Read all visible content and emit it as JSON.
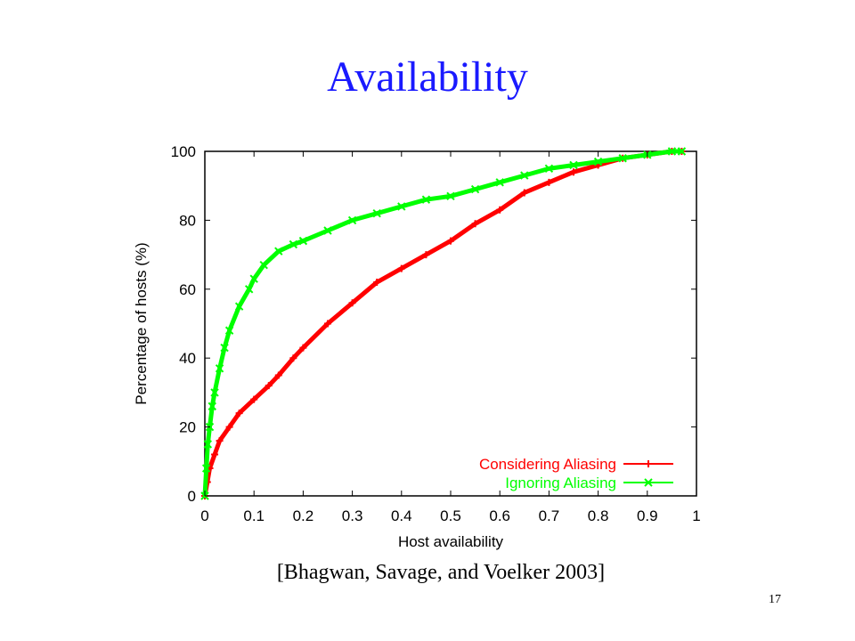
{
  "slide": {
    "title": "Availability",
    "citation": "[Bhagwan, Savage, and Voelker 2003]",
    "number": "17",
    "title_color": "#1a1aff"
  },
  "chart_data": {
    "type": "line",
    "xlabel": "Host availability",
    "ylabel": "Percentage of hosts (%)",
    "xlim": [
      0,
      1
    ],
    "ylim": [
      0,
      100
    ],
    "x_ticks": [
      "0",
      "0.1",
      "0.2",
      "0.3",
      "0.4",
      "0.5",
      "0.6",
      "0.7",
      "0.8",
      "0.9",
      "1"
    ],
    "y_ticks": [
      "0",
      "20",
      "40",
      "60",
      "80",
      "100"
    ],
    "grid": false,
    "legend_position": "bottom-right",
    "series": [
      {
        "name": "Considering Aliasing",
        "color": "#ff0000",
        "marker": "plus",
        "x": [
          0,
          0.005,
          0.01,
          0.02,
          0.03,
          0.05,
          0.07,
          0.1,
          0.13,
          0.15,
          0.18,
          0.2,
          0.25,
          0.3,
          0.35,
          0.4,
          0.45,
          0.5,
          0.55,
          0.6,
          0.65,
          0.7,
          0.75,
          0.8,
          0.85,
          0.9,
          0.95,
          0.97
        ],
        "y": [
          0,
          4,
          8,
          12,
          16,
          20,
          24,
          28,
          32,
          35,
          40,
          43,
          50,
          56,
          62,
          66,
          70,
          74,
          79,
          83,
          88,
          91,
          94,
          96,
          98,
          99,
          100,
          100
        ]
      },
      {
        "name": "Ignoring Aliasing",
        "color": "#00ff00",
        "marker": "cross",
        "x": [
          0,
          0.003,
          0.006,
          0.01,
          0.015,
          0.02,
          0.03,
          0.04,
          0.05,
          0.07,
          0.09,
          0.1,
          0.12,
          0.15,
          0.18,
          0.2,
          0.25,
          0.3,
          0.35,
          0.4,
          0.45,
          0.5,
          0.55,
          0.6,
          0.65,
          0.7,
          0.75,
          0.8,
          0.85,
          0.9,
          0.95,
          0.97
        ],
        "y": [
          0,
          8,
          15,
          20,
          26,
          30,
          37,
          43,
          48,
          55,
          60,
          63,
          67,
          71,
          73,
          74,
          77,
          80,
          82,
          84,
          86,
          87,
          89,
          91,
          93,
          95,
          96,
          97,
          98,
          99,
          100,
          100
        ]
      }
    ]
  }
}
